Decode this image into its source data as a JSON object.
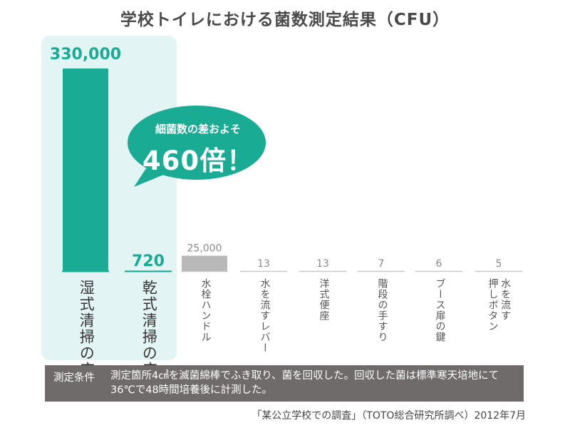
{
  "title": "学校トイレにおける菌数測定結果（CFU）",
  "bubble": {
    "line1": "細菌数の差およそ",
    "line2": "460倍！"
  },
  "conditions": {
    "heading": "測定条件",
    "text": "測定箇所4㎠を滅菌綿棒でふき取り、菌を回収した。回収した菌は標準寒天培地にて36℃で48時間培養後に計測した。"
  },
  "source": "「某公立学校での調査」（TOTO総合研究所調べ）2012年7月",
  "colors": {
    "teal": "#1aab94",
    "highlight_bg": "#e3f4f4",
    "gray_bar": "#b8b8b8",
    "line_gray": "#c8c8c8",
    "condition_bg": "#6f6b6b"
  },
  "chart_data": {
    "type": "bar",
    "title": "学校トイレにおける菌数測定結果（CFU）",
    "categories": [
      "湿式清掃の床",
      "乾式清掃の床",
      "水栓ハンドル",
      "水を流すレバー",
      "洋式便座",
      "階段の手すり",
      "ブース扉の鍵",
      "水を流す押しボタン"
    ],
    "values": [
      330000,
      720,
      25000,
      13,
      13,
      7,
      6,
      5
    ],
    "labels": [
      "330,000",
      "720",
      "25,000",
      "13",
      "13",
      "7",
      "6",
      "5"
    ],
    "highlighted": [
      true,
      true,
      false,
      false,
      false,
      false,
      false,
      false
    ],
    "xlabel": "",
    "ylabel": ""
  }
}
